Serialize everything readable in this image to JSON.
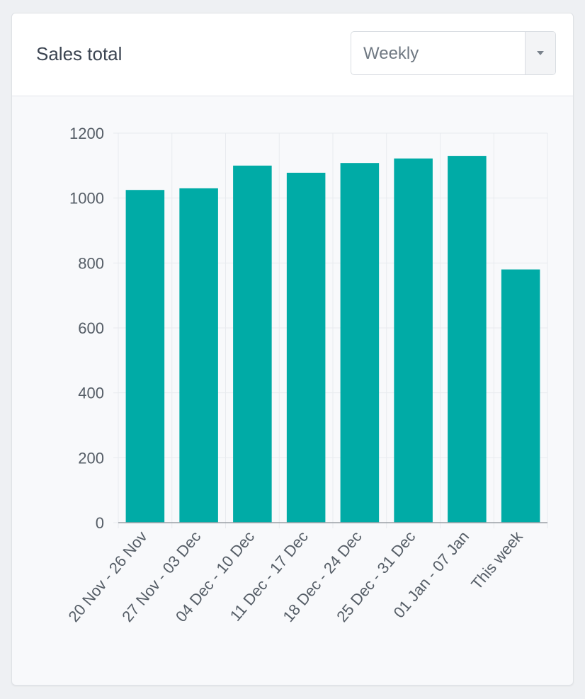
{
  "header": {
    "title": "Sales total",
    "period_select": {
      "value": "Weekly",
      "icon": "chevron-down-icon"
    }
  },
  "colors": {
    "bar": "#00aba6",
    "grid": "#e8ebef",
    "axis": "#9aa0a6",
    "tick_text": "#555d66"
  },
  "chart_data": {
    "type": "bar",
    "title": "",
    "xlabel": "",
    "ylabel": "",
    "categories": [
      "20 Nov - 26 Nov",
      "27 Nov - 03 Dec",
      "04 Dec - 10 Dec",
      "11 Dec - 17 Dec",
      "18 Dec - 24 Dec",
      "25 Dec - 31 Dec",
      "01 Jan - 07 Jan",
      "This week"
    ],
    "values": [
      1025,
      1030,
      1100,
      1078,
      1108,
      1122,
      1130,
      780
    ],
    "ylim": [
      0,
      1200
    ],
    "yticks": [
      0,
      200,
      400,
      600,
      800,
      1000,
      1200
    ],
    "grid": true,
    "legend": "none"
  }
}
